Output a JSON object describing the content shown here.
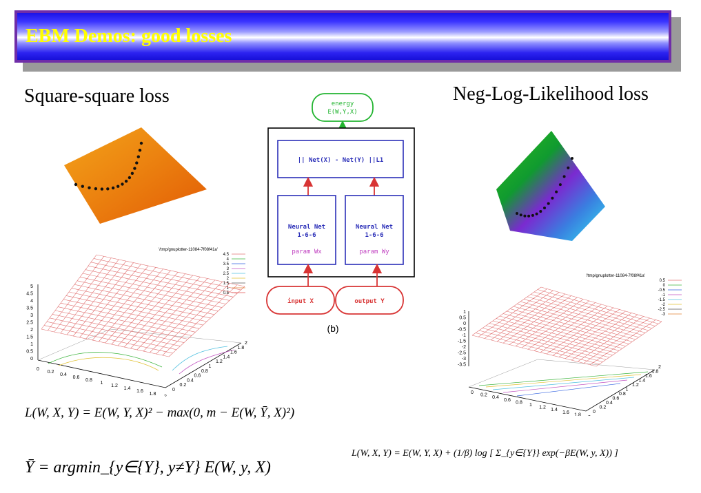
{
  "slide": {
    "title": "EBM Demos: good losses",
    "left_heading": "Square-square loss",
    "right_heading": "Neg-Log-Likelihood loss"
  },
  "diagram": {
    "energy_label": "energy",
    "energy_expr": "E(W,Y,X)",
    "distance_label": "|| Net(X) - Net(Y) ||L1",
    "net_left_title": "Neural Net",
    "net_left_arch": "1-6-6",
    "net_left_param": "param Wx",
    "net_right_title": "Neural Net",
    "net_right_arch": "1-6-6",
    "net_right_param": "param Wy",
    "input_label": "input X",
    "output_label": "output Y",
    "caption": "(b)"
  },
  "left_plot": {
    "legend_title": "'/tmp/gnuplotter-11084-7f08f41a'",
    "legend_levels": [
      "4.5",
      "4",
      "3.5",
      "3",
      "2.5",
      "2",
      "1.5",
      "1",
      "0.5"
    ],
    "z_ticks": [
      "5",
      "4.5",
      "4",
      "3.5",
      "3",
      "2.5",
      "2",
      "1.5",
      "1",
      "0.5",
      "0"
    ],
    "x_ticks": [
      "0",
      "0.2",
      "0.4",
      "0.6",
      "0.8",
      "1",
      "1.2",
      "1.4",
      "1.6",
      "1.8",
      "2"
    ],
    "y_ticks": [
      "0",
      "0.2",
      "0.4",
      "0.6",
      "0.8",
      "1",
      "1.2",
      "1.4",
      "1.6",
      "1.8",
      "2"
    ]
  },
  "right_plot": {
    "legend_title": "'/tmp/gnuplotter-11084-7f08f41a'",
    "legend_levels": [
      "0.5",
      "0",
      "-0.5",
      "-1",
      "-1.5",
      "-2",
      "-2.5",
      "-3"
    ],
    "z_ticks": [
      "1",
      "0.5",
      "0",
      "-0.5",
      "-1",
      "-1.5",
      "-2",
      "-2.5",
      "-3",
      "-3.5"
    ],
    "x_ticks": [
      "0",
      "0.2",
      "0.4",
      "0.6",
      "0.8",
      "1",
      "1.2",
      "1.4",
      "1.6",
      "1.8",
      "2"
    ],
    "y_ticks": [
      "0",
      "0.2",
      "0.4",
      "0.6",
      "0.8",
      "1",
      "1.2",
      "1.4",
      "1.6",
      "1.8",
      "2"
    ]
  },
  "formulas": {
    "square_square_loss": "L(W, X, Y) = E(W, Y, X)² − max(0, m − E(W, Ȳ, X)²)",
    "ybar_def": "Ȳ = argmin_{y∈{Y}, y≠Y} E(W, y, X)",
    "nll_loss": "L(W, X, Y) = E(W, Y, X) + (1/β) log [ Σ_{y∈{Y}} exp(−βE(W, y, X)) ]"
  },
  "colors": {
    "title_text": "#ffff00",
    "title_border": "#6f2da8",
    "title_blue": "#1b14e8",
    "diagram_green": "#22b430",
    "diagram_blue": "#2b2fb8",
    "diagram_red": "#d83434",
    "param_magenta": "#c040c0",
    "grid_red": "#e07070"
  }
}
